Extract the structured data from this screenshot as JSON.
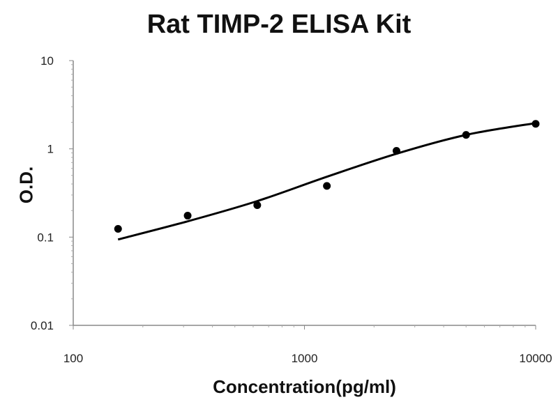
{
  "chart_data": {
    "type": "scatter",
    "title": "Rat TIMP-2 ELISA Kit",
    "xlabel": "Concentration(pg/ml)",
    "ylabel": "O.D.",
    "xscale": "log",
    "yscale": "log",
    "xlim": [
      100,
      10000
    ],
    "ylim": [
      0.01,
      10
    ],
    "xticks": [
      "100",
      "1000",
      "10000"
    ],
    "yticks": [
      "0.01",
      "0.1",
      "1",
      "10"
    ],
    "grid": false,
    "points": {
      "x": [
        156.25,
        312.5,
        625,
        1250,
        2500,
        5000,
        10000
      ],
      "y": [
        0.124,
        0.175,
        0.23,
        0.38,
        0.95,
        1.44,
        1.92
      ]
    },
    "fit_curve": {
      "x": [
        156.25,
        312.5,
        625,
        1250,
        2500,
        5000,
        10000
      ],
      "y": [
        0.094,
        0.151,
        0.256,
        0.483,
        0.88,
        1.44,
        1.96
      ]
    }
  }
}
